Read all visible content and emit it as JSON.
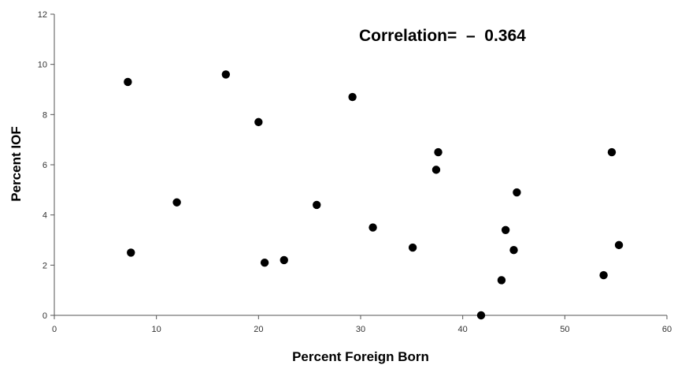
{
  "chart_data": {
    "type": "scatter",
    "xlabel": "Percent Foreign Born",
    "ylabel": "Percent IOF",
    "annotation": "Correlation=  –  0.364",
    "xlim": [
      0,
      60
    ],
    "ylim": [
      0,
      12
    ],
    "xticks": [
      "0",
      "10",
      "20",
      "30",
      "40",
      "50",
      "60"
    ],
    "yticks": [
      "0",
      "2",
      "4",
      "6",
      "8",
      "10",
      "12"
    ],
    "grid": false,
    "marker_color": "#000000",
    "points": [
      {
        "x": 7.2,
        "y": 9.3
      },
      {
        "x": 7.5,
        "y": 2.5
      },
      {
        "x": 12.0,
        "y": 4.5
      },
      {
        "x": 16.8,
        "y": 9.6
      },
      {
        "x": 20.0,
        "y": 7.7
      },
      {
        "x": 20.6,
        "y": 2.1
      },
      {
        "x": 22.5,
        "y": 2.2
      },
      {
        "x": 25.7,
        "y": 4.4
      },
      {
        "x": 29.2,
        "y": 8.7
      },
      {
        "x": 31.2,
        "y": 3.5
      },
      {
        "x": 35.1,
        "y": 2.7
      },
      {
        "x": 37.4,
        "y": 5.8
      },
      {
        "x": 37.6,
        "y": 6.5
      },
      {
        "x": 41.8,
        "y": 0.0
      },
      {
        "x": 43.8,
        "y": 1.4
      },
      {
        "x": 44.2,
        "y": 3.4
      },
      {
        "x": 45.0,
        "y": 2.6
      },
      {
        "x": 45.3,
        "y": 4.9
      },
      {
        "x": 53.8,
        "y": 1.6
      },
      {
        "x": 54.6,
        "y": 6.5
      },
      {
        "x": 55.3,
        "y": 2.8
      }
    ]
  }
}
